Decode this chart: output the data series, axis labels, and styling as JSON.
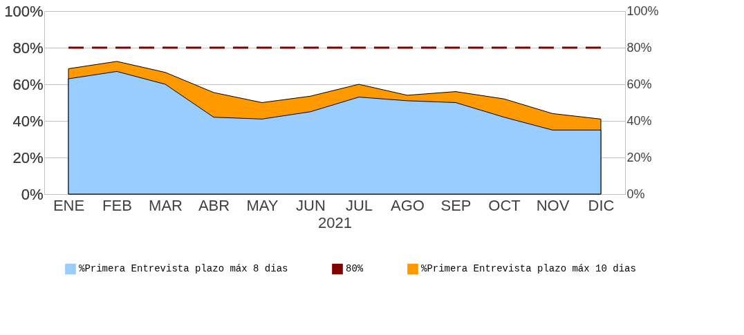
{
  "chart_data": {
    "type": "area",
    "xlabel": "2021",
    "categories": [
      "ENE",
      "FEB",
      "MAR",
      "ABR",
      "MAY",
      "JUN",
      "JUL",
      "AGO",
      "SEP",
      "OCT",
      "NOV",
      "DIC"
    ],
    "series": [
      {
        "name": "%Primera Entrevista plazo máx 8 dias",
        "color": "#99ccff",
        "values": [
          63,
          67,
          60,
          42,
          41,
          45,
          53,
          51,
          50,
          42,
          35,
          35
        ]
      },
      {
        "name": "80%",
        "type": "line",
        "line_style": "dashed",
        "axis": "y2",
        "color": "#800000",
        "values": [
          80,
          80,
          80,
          80,
          80,
          80,
          80,
          80,
          80,
          80,
          80,
          80
        ]
      },
      {
        "name": "%Primera Entrevista plazo máx 10 dias",
        "color": "#ff9900",
        "values": [
          68.5,
          72.5,
          66.5,
          55.5,
          50,
          53.5,
          60,
          54,
          56,
          52,
          44,
          41
        ]
      }
    ],
    "ylim": [
      0,
      100
    ],
    "yticks": [
      {
        "value": 0,
        "label": "0%"
      },
      {
        "value": 20,
        "label": "20%"
      },
      {
        "value": 40,
        "label": "40%"
      },
      {
        "value": 60,
        "label": "60%"
      },
      {
        "value": 80,
        "label": "80%"
      },
      {
        "value": 100,
        "label": "100%"
      }
    ],
    "y2lim": [
      0,
      100
    ],
    "y2ticks": [
      {
        "value": 0,
        "label": "0%"
      },
      {
        "value": 20,
        "label": "20%"
      },
      {
        "value": 40,
        "label": "40%"
      },
      {
        "value": 60,
        "label": "60%"
      },
      {
        "value": 80,
        "label": "80%"
      },
      {
        "value": 100,
        "label": "100%"
      }
    ],
    "grid": "y",
    "legend": "bottom"
  }
}
